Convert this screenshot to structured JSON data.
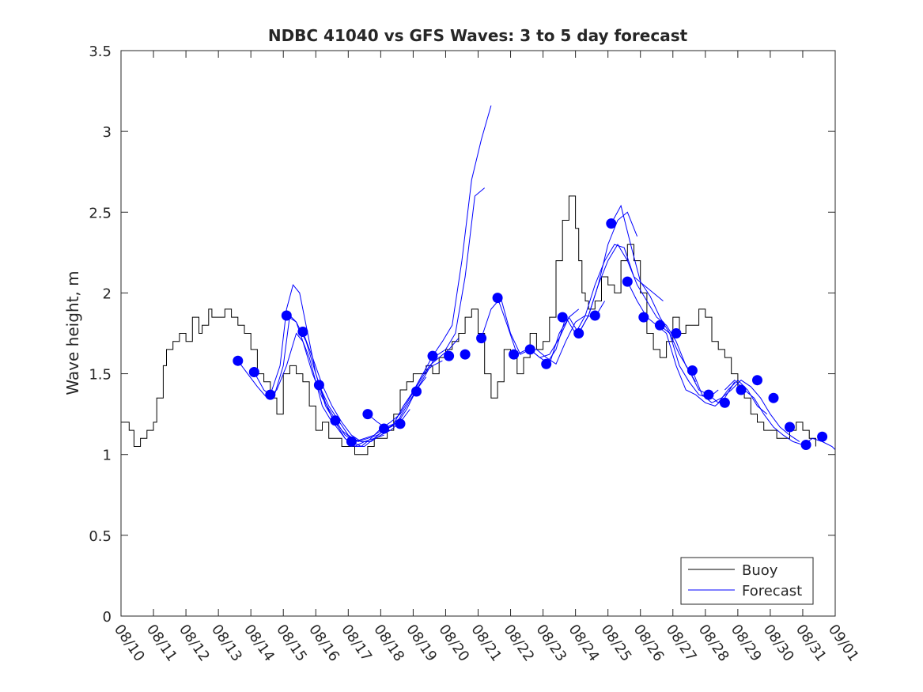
{
  "chart_data": {
    "type": "line",
    "title": "NDBC 41040 vs GFS Waves: 3 to 5 day forecast",
    "xlabel": "",
    "ylabel": "Wave height, m",
    "xlim": [
      0,
      22
    ],
    "ylim": [
      0,
      3.5
    ],
    "yticks": [
      0,
      0.5,
      1,
      1.5,
      2,
      2.5,
      3,
      3.5
    ],
    "ytick_labels": [
      "0",
      "0.5",
      "1",
      "1.5",
      "2",
      "2.5",
      "3",
      "3.5"
    ],
    "xtick_labels": [
      "08/10",
      "08/11",
      "08/12",
      "08/13",
      "08/14",
      "08/15",
      "08/16",
      "08/17",
      "08/18",
      "08/19",
      "08/20",
      "08/21",
      "08/22",
      "08/23",
      "08/24",
      "08/25",
      "08/26",
      "08/27",
      "08/28",
      "08/29",
      "08/30",
      "08/31",
      "09/01"
    ],
    "x_units": "days since 08/10",
    "legend": {
      "position": "bottom-right",
      "entries": [
        "Buoy",
        "Forecast"
      ]
    },
    "colors": {
      "buoy": "#000000",
      "forecast": "#0000ff",
      "axis": "#262626"
    },
    "buoy": {
      "name": "Buoy",
      "x": [
        0,
        0.25,
        0.4,
        0.6,
        0.8,
        1.0,
        1.1,
        1.3,
        1.4,
        1.6,
        1.8,
        2.0,
        2.2,
        2.4,
        2.5,
        2.7,
        2.8,
        3.0,
        3.2,
        3.4,
        3.6,
        3.8,
        4.0,
        4.2,
        4.4,
        4.6,
        4.8,
        5.0,
        5.2,
        5.4,
        5.6,
        5.8,
        6.0,
        6.2,
        6.4,
        6.6,
        6.8,
        7.0,
        7.2,
        7.4,
        7.6,
        7.8,
        8.0,
        8.2,
        8.4,
        8.6,
        8.8,
        9.0,
        9.2,
        9.4,
        9.6,
        9.8,
        10.0,
        10.2,
        10.4,
        10.6,
        10.8,
        11.0,
        11.2,
        11.4,
        11.6,
        11.8,
        12.0,
        12.2,
        12.4,
        12.6,
        12.8,
        13.0,
        13.2,
        13.4,
        13.6,
        13.8,
        14.0,
        14.1,
        14.2,
        14.3,
        14.4,
        14.6,
        14.8,
        15.0,
        15.2,
        15.4,
        15.6,
        15.8,
        16.0,
        16.2,
        16.4,
        16.6,
        16.8,
        17.0,
        17.2,
        17.4,
        17.6,
        17.8,
        18.0,
        18.2,
        18.4,
        18.6,
        18.8,
        19.0,
        19.2,
        19.4,
        19.6,
        19.8,
        20.0,
        20.2,
        20.4,
        20.6,
        20.8,
        21.0,
        21.2,
        21.4
      ],
      "values": [
        1.2,
        1.15,
        1.05,
        1.1,
        1.15,
        1.2,
        1.35,
        1.55,
        1.65,
        1.7,
        1.75,
        1.7,
        1.85,
        1.75,
        1.8,
        1.9,
        1.85,
        1.85,
        1.9,
        1.85,
        1.8,
        1.75,
        1.65,
        1.5,
        1.45,
        1.35,
        1.25,
        1.5,
        1.55,
        1.5,
        1.45,
        1.3,
        1.15,
        1.2,
        1.1,
        1.1,
        1.05,
        1.05,
        1.0,
        1.0,
        1.05,
        1.1,
        1.1,
        1.15,
        1.25,
        1.4,
        1.45,
        1.5,
        1.5,
        1.55,
        1.5,
        1.6,
        1.65,
        1.7,
        1.75,
        1.85,
        1.9,
        1.75,
        1.5,
        1.35,
        1.45,
        1.65,
        1.6,
        1.5,
        1.6,
        1.75,
        1.65,
        1.7,
        1.85,
        2.2,
        2.45,
        2.6,
        2.4,
        2.2,
        2.0,
        1.95,
        1.9,
        1.95,
        2.1,
        2.05,
        2.0,
        2.2,
        2.3,
        2.2,
        2.0,
        1.75,
        1.65,
        1.6,
        1.7,
        1.85,
        1.75,
        1.8,
        1.8,
        1.9,
        1.85,
        1.7,
        1.65,
        1.6,
        1.5,
        1.4,
        1.35,
        1.25,
        1.2,
        1.15,
        1.15,
        1.1,
        1.1,
        1.15,
        1.2,
        1.15,
        1.1,
        1.05
      ]
    },
    "forecast_runs": [
      {
        "x": [
          3.6,
          3.9,
          4.2,
          4.5,
          4.8,
          5.1,
          5.4,
          5.6,
          5.8,
          6.0,
          6.2,
          6.5
        ],
        "values": [
          1.58,
          1.5,
          1.42,
          1.35,
          1.4,
          1.55,
          1.75,
          1.7,
          1.6,
          1.45,
          1.3,
          1.2
        ]
      },
      {
        "x": [
          4.1,
          4.4,
          4.7,
          5.0,
          5.2,
          5.4,
          5.6,
          5.9,
          6.2,
          6.5,
          6.8,
          7.1,
          7.4
        ],
        "values": [
          1.51,
          1.4,
          1.35,
          1.55,
          1.86,
          1.82,
          1.7,
          1.5,
          1.35,
          1.25,
          1.15,
          1.1,
          1.08
        ]
      },
      {
        "x": [
          4.6,
          4.9,
          5.1,
          5.3,
          5.5,
          5.7,
          6.0,
          6.3,
          6.6,
          6.9,
          7.2,
          7.5,
          7.8,
          8.1
        ],
        "values": [
          1.37,
          1.55,
          1.9,
          2.05,
          2.0,
          1.8,
          1.5,
          1.3,
          1.2,
          1.1,
          1.05,
          1.08,
          1.1,
          1.12
        ]
      },
      {
        "x": [
          5.1,
          5.4,
          5.7,
          6.0,
          6.3,
          6.6,
          6.9,
          7.2,
          7.5,
          7.8,
          8.1,
          8.4
        ],
        "values": [
          1.86,
          1.82,
          1.7,
          1.5,
          1.32,
          1.18,
          1.1,
          1.05,
          1.05,
          1.1,
          1.15,
          1.18
        ]
      },
      {
        "x": [
          5.6,
          5.9,
          6.2,
          6.5,
          6.8,
          7.1,
          7.4,
          7.7,
          8.0,
          8.3,
          8.6,
          8.9
        ],
        "values": [
          1.76,
          1.6,
          1.43,
          1.3,
          1.2,
          1.12,
          1.08,
          1.08,
          1.12,
          1.15,
          1.2,
          1.28
        ]
      },
      {
        "x": [
          6.1,
          6.4,
          6.7,
          7.0,
          7.3,
          7.6,
          7.9,
          8.2,
          8.5,
          8.8,
          9.1,
          9.4
        ],
        "values": [
          1.43,
          1.3,
          1.21,
          1.12,
          1.08,
          1.1,
          1.12,
          1.16,
          1.2,
          1.3,
          1.4,
          1.48
        ]
      },
      {
        "x": [
          6.6,
          6.9,
          7.2,
          7.5,
          7.8,
          8.1,
          8.4,
          8.7,
          9.0,
          9.3,
          9.6,
          9.9
        ],
        "values": [
          1.21,
          1.12,
          1.08,
          1.1,
          1.12,
          1.16,
          1.19,
          1.3,
          1.39,
          1.5,
          1.55,
          1.58
        ]
      },
      {
        "x": [
          7.1,
          7.4,
          7.7,
          8.0,
          8.3,
          8.6,
          8.9,
          9.2,
          9.5,
          9.8,
          10.1,
          10.4
        ],
        "values": [
          1.08,
          1.05,
          1.1,
          1.16,
          1.2,
          1.25,
          1.35,
          1.45,
          1.55,
          1.6,
          1.65,
          1.72
        ]
      },
      {
        "x": [
          7.6,
          7.9,
          8.2,
          8.5,
          8.8,
          9.1,
          9.4,
          9.7,
          10.0,
          10.3,
          10.6,
          10.9,
          11.2
        ],
        "values": [
          1.25,
          1.2,
          1.16,
          1.19,
          1.28,
          1.4,
          1.5,
          1.61,
          1.65,
          1.75,
          2.1,
          2.6,
          2.65
        ]
      },
      {
        "x": [
          8.1,
          8.4,
          8.7,
          9.0,
          9.3,
          9.6,
          9.9,
          10.2,
          10.5,
          10.8,
          11.1,
          11.4
        ],
        "values": [
          1.16,
          1.19,
          1.3,
          1.39,
          1.5,
          1.61,
          1.7,
          1.8,
          2.2,
          2.7,
          2.95,
          3.16
        ]
      },
      {
        "x": [
          11.1,
          11.4,
          11.7,
          12.0,
          12.3,
          12.6,
          12.9,
          13.2,
          13.5,
          13.8,
          14.1
        ],
        "values": [
          1.72,
          1.9,
          1.97,
          1.75,
          1.62,
          1.65,
          1.6,
          1.62,
          1.72,
          1.85,
          1.9
        ]
      },
      {
        "x": [
          11.6,
          11.9,
          12.2,
          12.5,
          12.8,
          13.1,
          13.4,
          13.7,
          14.0,
          14.3,
          14.6,
          14.9
        ],
        "values": [
          1.97,
          1.8,
          1.62,
          1.65,
          1.65,
          1.6,
          1.56,
          1.7,
          1.82,
          1.86,
          1.85,
          1.95
        ]
      },
      {
        "x": [
          12.6,
          12.9,
          13.2,
          13.5,
          13.8,
          14.1,
          14.4,
          14.7,
          15.0,
          15.3,
          15.6,
          15.9
        ],
        "values": [
          1.65,
          1.6,
          1.56,
          1.75,
          1.85,
          1.75,
          1.86,
          2.05,
          2.3,
          2.45,
          2.5,
          2.35
        ]
      },
      {
        "x": [
          13.1,
          13.4,
          13.7,
          14.0,
          14.3,
          14.6,
          14.9,
          15.2,
          15.5,
          15.8,
          16.1,
          16.4,
          16.7
        ],
        "values": [
          1.56,
          1.65,
          1.85,
          1.75,
          1.86,
          2.05,
          2.2,
          2.3,
          2.28,
          2.1,
          2.05,
          2.0,
          1.95
        ]
      },
      {
        "x": [
          14.1,
          14.4,
          14.7,
          15.0,
          15.3,
          15.6,
          15.9,
          16.2,
          16.5,
          16.8,
          17.1,
          17.4,
          17.7
        ],
        "values": [
          1.75,
          1.86,
          2.05,
          2.2,
          2.3,
          2.2,
          2.05,
          1.95,
          1.85,
          1.8,
          1.7,
          1.55,
          1.45
        ]
      },
      {
        "x": [
          15.1,
          15.4,
          15.7,
          16.0,
          16.3,
          16.6,
          16.9,
          17.2,
          17.5,
          17.8,
          18.1,
          18.4
        ],
        "values": [
          2.43,
          2.54,
          2.3,
          2.07,
          1.98,
          1.85,
          1.75,
          1.55,
          1.45,
          1.37,
          1.35,
          1.4
        ]
      },
      {
        "x": [
          15.6,
          15.9,
          16.2,
          16.5,
          16.8,
          17.1,
          17.4,
          17.7,
          18.0,
          18.3,
          18.6,
          18.9
        ],
        "values": [
          2.07,
          1.95,
          1.85,
          1.8,
          1.75,
          1.55,
          1.4,
          1.37,
          1.32,
          1.3,
          1.35,
          1.45
        ]
      },
      {
        "x": [
          16.6,
          16.9,
          17.2,
          17.5,
          17.8,
          18.1,
          18.4,
          18.7,
          19.0,
          19.3,
          19.6,
          19.9
        ],
        "values": [
          1.8,
          1.75,
          1.62,
          1.52,
          1.4,
          1.37,
          1.32,
          1.4,
          1.46,
          1.4,
          1.3,
          1.25
        ]
      },
      {
        "x": [
          17.6,
          17.9,
          18.2,
          18.5,
          18.8,
          19.1,
          19.4,
          19.7,
          20.0,
          20.3,
          20.6,
          20.9
        ],
        "values": [
          1.52,
          1.37,
          1.32,
          1.35,
          1.4,
          1.46,
          1.42,
          1.35,
          1.25,
          1.17,
          1.12,
          1.08
        ]
      },
      {
        "x": [
          18.6,
          18.9,
          19.2,
          19.5,
          19.8,
          20.1,
          20.4,
          20.7,
          21.0,
          21.3,
          21.6,
          21.9,
          22.0
        ],
        "values": [
          1.4,
          1.46,
          1.4,
          1.35,
          1.25,
          1.17,
          1.12,
          1.08,
          1.06,
          1.1,
          1.08,
          1.05,
          1.03
        ]
      }
    ],
    "forecast_points": {
      "x": [
        3.6,
        4.1,
        4.6,
        5.1,
        5.6,
        6.1,
        6.6,
        7.1,
        7.6,
        8.1,
        8.6,
        9.1,
        9.6,
        10.1,
        10.6,
        11.1,
        11.6,
        12.1,
        12.6,
        13.1,
        13.6,
        14.1,
        14.6,
        15.1,
        15.6,
        16.1,
        16.6,
        17.1,
        17.6,
        18.1,
        18.6,
        19.1,
        19.6,
        20.1,
        20.6,
        21.1,
        21.6
      ],
      "values": [
        1.58,
        1.51,
        1.37,
        1.86,
        1.76,
        1.43,
        1.21,
        1.08,
        1.25,
        1.16,
        1.19,
        1.39,
        1.61,
        1.61,
        1.62,
        1.72,
        1.97,
        1.62,
        1.65,
        1.56,
        1.85,
        1.75,
        1.86,
        2.43,
        2.07,
        1.85,
        1.8,
        1.75,
        1.52,
        1.37,
        1.32,
        1.4,
        1.46,
        1.35,
        1.17,
        1.06,
        1.11
      ]
    }
  }
}
